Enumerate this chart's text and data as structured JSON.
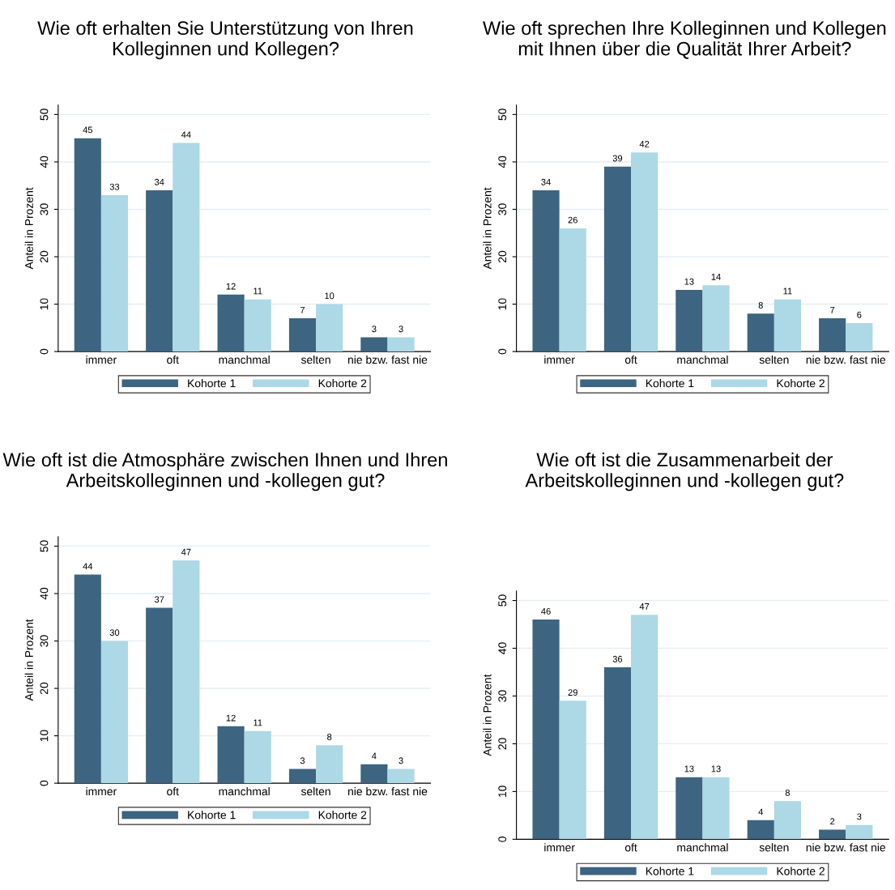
{
  "chart_data": [
    {
      "type": "bar",
      "title": "Wie oft erhalten Sie Unterstützung von Ihren Kolleginnen und Kollegen?",
      "ylabel": "Anteil in Prozent",
      "categories": [
        "immer",
        "oft",
        "manchmal",
        "selten",
        "nie bzw. fast nie"
      ],
      "ylim": [
        0,
        52
      ],
      "yticks": [
        0,
        10,
        20,
        30,
        40,
        50
      ],
      "grid": "y",
      "legend": "bottom",
      "data_labels": true,
      "series": [
        {
          "name": "Kohorte 1",
          "color": "#3d6480",
          "values": [
            45,
            34,
            12,
            7,
            3
          ]
        },
        {
          "name": "Kohorte 2",
          "color": "#add8e6",
          "values": [
            33,
            44,
            11,
            10,
            3
          ]
        }
      ]
    },
    {
      "type": "bar",
      "title": "Wie oft sprechen Ihre Kolleginnen und Kollegen mit Ihnen über die Qualität Ihrer Arbeit?",
      "ylabel": "Anteil in Prozent",
      "categories": [
        "immer",
        "oft",
        "manchmal",
        "selten",
        "nie bzw. fast nie"
      ],
      "ylim": [
        0,
        52
      ],
      "yticks": [
        0,
        10,
        20,
        30,
        40,
        50
      ],
      "grid": "y",
      "legend": "bottom",
      "data_labels": true,
      "series": [
        {
          "name": "Kohorte 1",
          "color": "#3d6480",
          "values": [
            34,
            39,
            13,
            8,
            7
          ]
        },
        {
          "name": "Kohorte 2",
          "color": "#add8e6",
          "values": [
            26,
            42,
            14,
            11,
            6
          ]
        }
      ]
    },
    {
      "type": "bar",
      "title": "Wie oft ist die Atmosphäre zwischen Ihnen und Ihren Arbeitskolleginnen und -kollegen gut?",
      "ylabel": "Anteil in Prozent",
      "categories": [
        "immer",
        "oft",
        "manchmal",
        "selten",
        "nie bzw. fast nie"
      ],
      "ylim": [
        0,
        52
      ],
      "yticks": [
        0,
        10,
        20,
        30,
        40,
        50
      ],
      "grid": "y",
      "legend": "bottom",
      "data_labels": true,
      "series": [
        {
          "name": "Kohorte 1",
          "color": "#3d6480",
          "values": [
            44,
            37,
            12,
            3,
            4
          ]
        },
        {
          "name": "Kohorte 2",
          "color": "#add8e6",
          "values": [
            30,
            47,
            11,
            8,
            3
          ]
        }
      ]
    },
    {
      "type": "bar",
      "title": "Wie oft ist die Zusammenarbeit der Arbeitskolleginnen und -kollegen gut?",
      "ylabel": "Anteil in Prozent",
      "categories": [
        "immer",
        "oft",
        "manchmal",
        "selten",
        "nie bzw. fast nie"
      ],
      "ylim": [
        0,
        52
      ],
      "yticks": [
        0,
        10,
        20,
        30,
        40,
        50
      ],
      "grid": "y",
      "legend": "bottom",
      "data_labels": true,
      "series": [
        {
          "name": "Kohorte 1",
          "color": "#3d6480",
          "values": [
            46,
            36,
            13,
            4,
            2
          ]
        },
        {
          "name": "Kohorte 2",
          "color": "#add8e6",
          "values": [
            29,
            47,
            13,
            8,
            3
          ]
        }
      ]
    }
  ]
}
